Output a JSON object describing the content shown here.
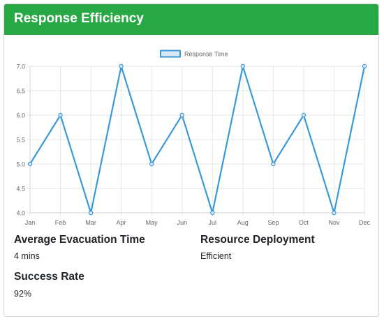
{
  "card": {
    "title": "Response Efficiency",
    "header_color": "#28a745"
  },
  "stats": {
    "avg_evac_label": "Average Evacuation Time",
    "avg_evac_value": "4 mins",
    "resource_label": "Resource Deployment",
    "resource_value": "Efficient",
    "success_label": "Success Rate",
    "success_value": "92%"
  },
  "chart_data": {
    "type": "line",
    "categories": [
      "Jan",
      "Feb",
      "Mar",
      "Apr",
      "May",
      "Jun",
      "Jul",
      "Aug",
      "Sep",
      "Oct",
      "Nov",
      "Dec"
    ],
    "series": [
      {
        "name": "Response Time",
        "values": [
          5,
          6,
          4,
          7,
          5,
          6,
          4,
          7,
          5,
          6,
          4,
          7
        ],
        "color": "#3a9ad9"
      }
    ],
    "ylim": [
      4,
      7
    ],
    "yticks": [
      "4.0",
      "4.5",
      "5.0",
      "5.5",
      "6.0",
      "6.5",
      "7.0"
    ],
    "grid": true,
    "legend": "top-center"
  }
}
